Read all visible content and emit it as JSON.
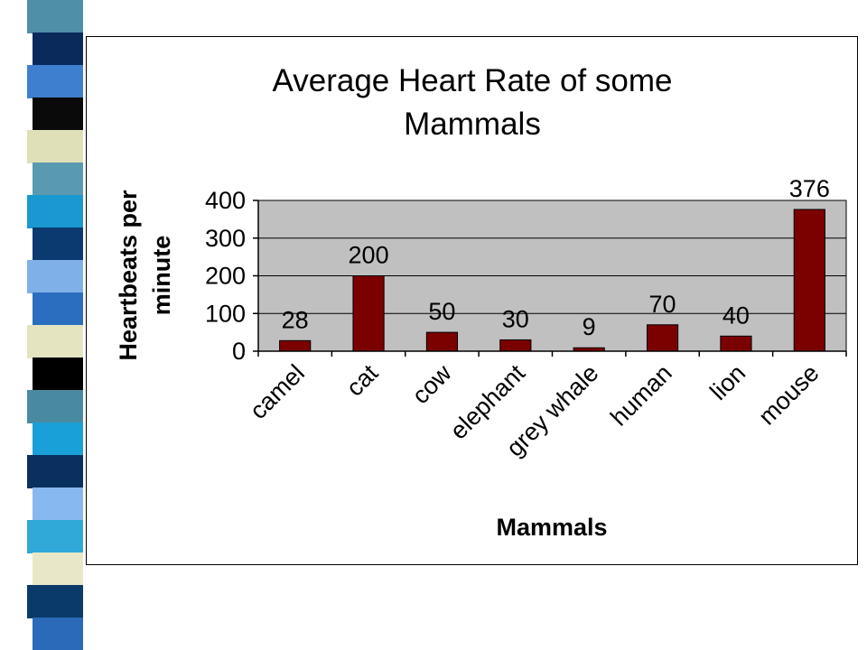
{
  "theme": {
    "bar_color": "#7b0000",
    "plot_bg": "#c0c0c0",
    "stripe_colors": [
      "#4f8fa8",
      "#0a2a5c",
      "#3f7fd0",
      "#0a0a0a",
      "#e0e0b8",
      "#5a9ab0",
      "#1a98d0",
      "#0a3a70",
      "#7fb0e8",
      "#2a6ec0",
      "#e4e4c0",
      "#000000",
      "#4a8aa0",
      "#1aa0d8",
      "#0a3060",
      "#88b8f0",
      "#30a8d8",
      "#e8e8c8",
      "#0a3a6a",
      "#2a6ab8"
    ]
  },
  "chart_data": {
    "type": "bar",
    "title": "Average Heart Rate of some Mammals",
    "title_lines": [
      "Average Heart Rate of some",
      "Mammals"
    ],
    "xlabel": "Mammals",
    "ylabel": "Heartbeats per minute",
    "ylabel_lines": [
      "Heartbeats per",
      "minute"
    ],
    "categories": [
      "camel",
      "cat",
      "cow",
      "elephant",
      "grey whale",
      "human",
      "lion",
      "mouse"
    ],
    "values": [
      28,
      200,
      50,
      30,
      9,
      70,
      40,
      376
    ],
    "data_labels": [
      "28",
      "200",
      "50",
      "30",
      "9",
      "70",
      "40",
      "376"
    ],
    "ylim": [
      0,
      400
    ],
    "yticks": [
      0,
      100,
      200,
      300,
      400
    ],
    "ytick_labels": [
      "0",
      "100",
      "200",
      "300",
      "400"
    ],
    "grid": true,
    "legend": "none"
  }
}
